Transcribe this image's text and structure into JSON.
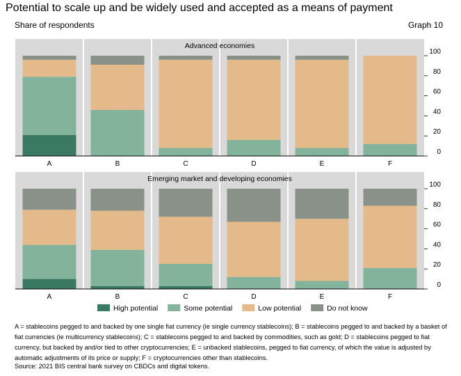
{
  "title": "Potential to scale up and be widely used and accepted as a means of payment",
  "subtitle": "Share of respondents",
  "graph_label": "Graph 10",
  "footnote": "A = stablecoins pegged to and backed by one single fiat currency (ie single currency stablecoins); B = stablecoins pegged to and backed by a basket of fiat currencies (ie multicurrency stablecoins); C = stablecoins pegged to and backed by commodities, such as gold; D = stablecoins pegged to fiat currency, but backed by and/or tied to other cryptocurrencies; E = unbacked stablecoins, pegged to fiat currency, of which the value is adjusted by automatic adjustments of its price or supply; F = cryptocurrencies other than stablecoins.",
  "source": "Source: 2021 BIS central bank survey on CBDCs and digital tokens.",
  "chart_data": [
    {
      "type": "bar",
      "stacked": true,
      "title": "Advanced economies",
      "categories": [
        "A",
        "B",
        "C",
        "D",
        "E",
        "F"
      ],
      "ylim": [
        0,
        100
      ],
      "yticks": [
        0,
        20,
        40,
        60,
        80,
        100
      ],
      "series": [
        {
          "name": "High potential",
          "color": "#3a7a63",
          "values": [
            21,
            0,
            0,
            0,
            0,
            0
          ]
        },
        {
          "name": "Some potential",
          "color": "#84b39b",
          "values": [
            58,
            46,
            8,
            16,
            8,
            12
          ]
        },
        {
          "name": "Low potential",
          "color": "#e5ba8a",
          "values": [
            17,
            45,
            88,
            80,
            88,
            88
          ]
        },
        {
          "name": "Do not know",
          "color": "#8a9188",
          "values": [
            4,
            9,
            4,
            4,
            4,
            0
          ]
        }
      ]
    },
    {
      "type": "bar",
      "stacked": true,
      "title": "Emerging market and developing economies",
      "categories": [
        "A",
        "B",
        "C",
        "D",
        "E",
        "F"
      ],
      "ylim": [
        0,
        100
      ],
      "yticks": [
        0,
        20,
        40,
        60,
        80,
        100
      ],
      "series": [
        {
          "name": "High potential",
          "color": "#3a7a63",
          "values": [
            10,
            3,
            3,
            0,
            0,
            0
          ]
        },
        {
          "name": "Some potential",
          "color": "#84b39b",
          "values": [
            34,
            36,
            22,
            12,
            8,
            21
          ]
        },
        {
          "name": "Low potential",
          "color": "#e5ba8a",
          "values": [
            35,
            39,
            47,
            55,
            62,
            62
          ]
        },
        {
          "name": "Do not know",
          "color": "#8a9188",
          "values": [
            21,
            22,
            28,
            33,
            30,
            17
          ]
        }
      ]
    }
  ],
  "legend": [
    {
      "label": "High potential",
      "color": "#3a7a63"
    },
    {
      "label": "Some potential",
      "color": "#84b39b"
    },
    {
      "label": "Low potential",
      "color": "#e5ba8a"
    },
    {
      "label": "Do not know",
      "color": "#8a9188"
    }
  ]
}
